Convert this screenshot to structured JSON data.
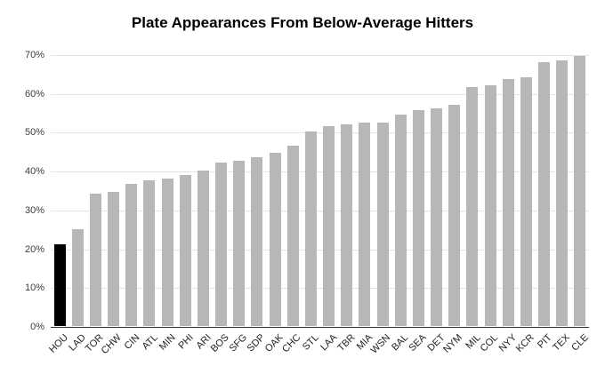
{
  "chart_data": {
    "type": "bar",
    "title": "Plate Appearances From Below-Average Hitters",
    "categories": [
      "HOU",
      "LAD",
      "TOR",
      "CHW",
      "CIN",
      "ATL",
      "MIN",
      "PHI",
      "ARI",
      "BOS",
      "SFG",
      "SDP",
      "OAK",
      "CHC",
      "STL",
      "LAA",
      "TBR",
      "MIA",
      "WSN",
      "BAL",
      "SEA",
      "DET",
      "NYM",
      "MIL",
      "COL",
      "NYY",
      "KCR",
      "PIT",
      "TEX",
      "CLE"
    ],
    "values": [
      21,
      25,
      34,
      34.5,
      36.5,
      37.5,
      38,
      39,
      40,
      42,
      42.5,
      43.5,
      44.5,
      46.5,
      50,
      51.5,
      52,
      52.5,
      52.5,
      54.5,
      55.5,
      56,
      57,
      61.5,
      62,
      63.5,
      64,
      68,
      68.5,
      69.5
    ],
    "xlabel": "",
    "ylabel": "",
    "ylim": [
      0,
      70
    ],
    "ytick_step": 10,
    "ytick_labels": [
      "0%",
      "10%",
      "20%",
      "30%",
      "40%",
      "50%",
      "60%",
      "70%"
    ],
    "grid": true,
    "legend": "none",
    "highlight_index": 0,
    "colors": {
      "bar": "#b7b7b7",
      "highlight": "#000000",
      "gridline": "#e3e3e3",
      "baseline": "#333333",
      "title": "#000000",
      "tick_text": "#3c3c3c"
    }
  }
}
